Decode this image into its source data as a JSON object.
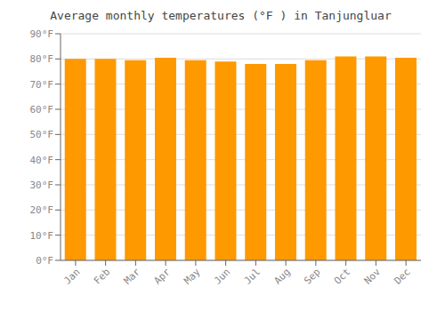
{
  "chart_data": {
    "type": "bar",
    "title": "Average monthly temperatures (°F ) in Tanjungluar",
    "categories": [
      "Jan",
      "Feb",
      "Mar",
      "Apr",
      "May",
      "Jun",
      "Jul",
      "Aug",
      "Sep",
      "Oct",
      "Nov",
      "Dec"
    ],
    "values": [
      80,
      80,
      79.5,
      80.5,
      79.5,
      79,
      78,
      78,
      79.5,
      81,
      81,
      80.5
    ],
    "color": "#FF9900",
    "ylim": [
      0,
      90
    ],
    "yticks": [
      {
        "value": 0,
        "label": "0°F"
      },
      {
        "value": 10,
        "label": "10°F"
      },
      {
        "value": 20,
        "label": "20°F"
      },
      {
        "value": 30,
        "label": "30°F"
      },
      {
        "value": 40,
        "label": "40°F"
      },
      {
        "value": 50,
        "label": "50°F"
      },
      {
        "value": 60,
        "label": "60°F"
      },
      {
        "value": 70,
        "label": "70°F"
      },
      {
        "value": 80,
        "label": "80°F"
      },
      {
        "value": 90,
        "label": "90°F"
      }
    ],
    "grid": true
  }
}
